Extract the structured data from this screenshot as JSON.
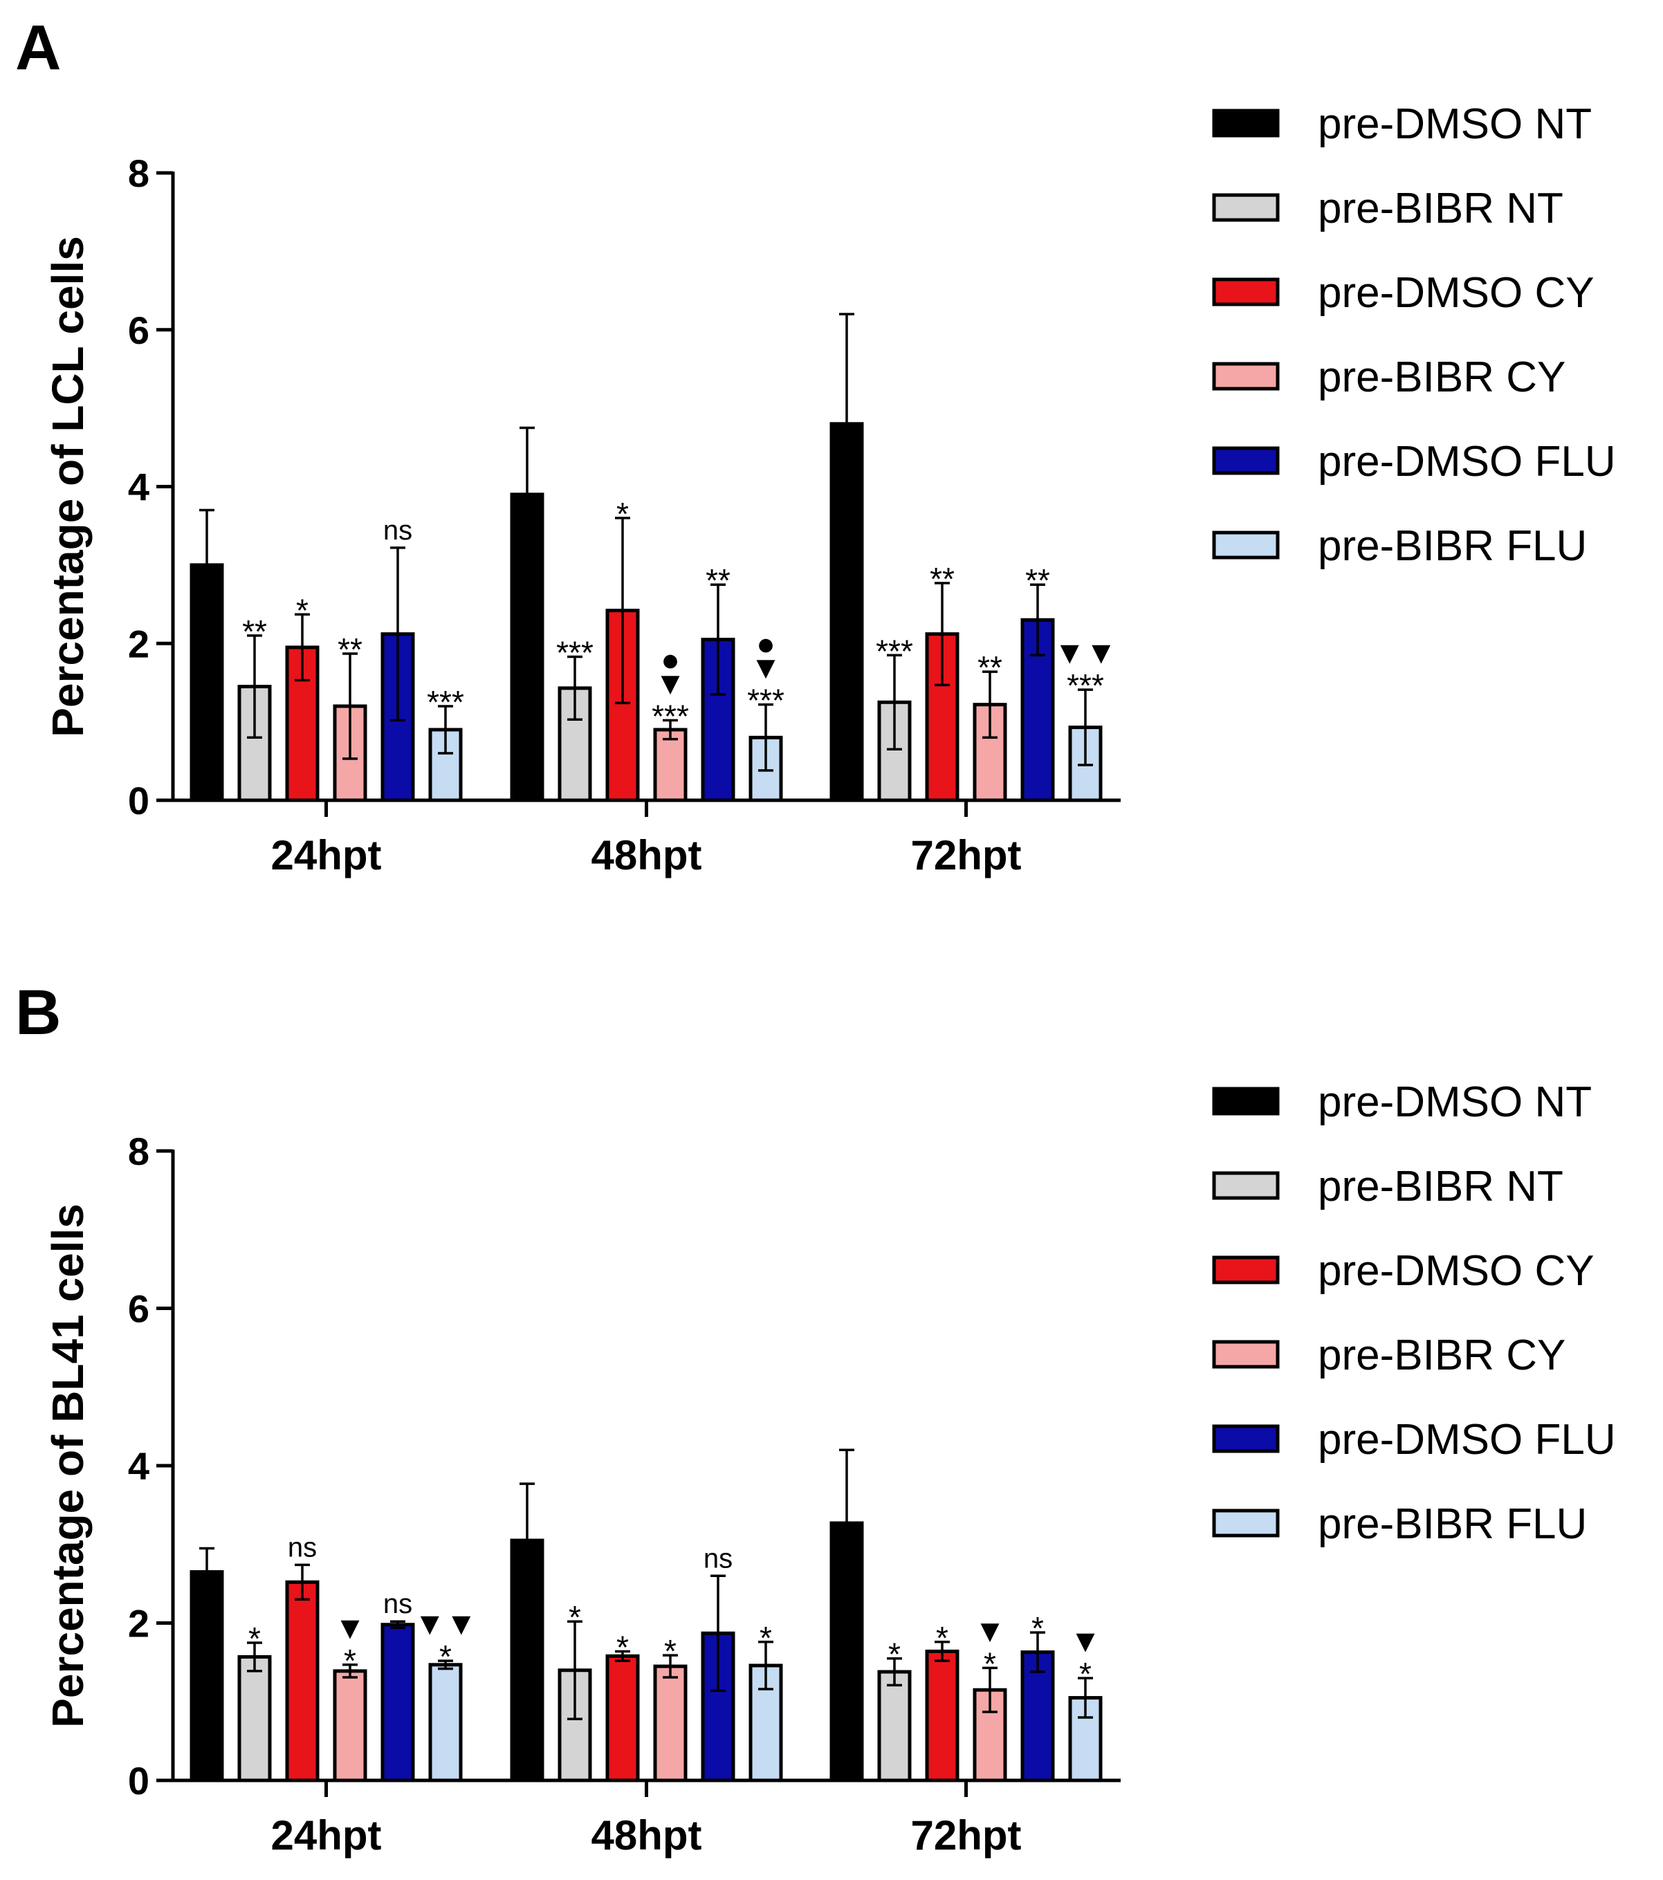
{
  "chart_data": [
    {
      "panel": "A",
      "type": "bar",
      "ylabel": "Percentage of LCL cells",
      "xlabel": "",
      "ylim": [
        0,
        8
      ],
      "yticks": [
        0,
        2,
        4,
        6,
        8
      ],
      "categories": [
        "24hpt",
        "48hpt",
        "72hpt"
      ],
      "series": [
        {
          "name": "pre-DMSO NT",
          "color": "#000000",
          "values": [
            3.0,
            3.9,
            4.8
          ],
          "errors": [
            0.7,
            0.85,
            1.4
          ],
          "annotations": [
            "",
            "",
            ""
          ]
        },
        {
          "name": "pre-BIBR NT",
          "color": "#d4d4d4",
          "values": [
            1.45,
            1.43,
            1.25
          ],
          "errors": [
            0.65,
            0.4,
            0.6
          ],
          "annotations": [
            "**",
            "***",
            "***"
          ]
        },
        {
          "name": "pre-DMSO CY",
          "color": "#e8141a",
          "values": [
            1.95,
            2.42,
            2.12
          ],
          "errors": [
            0.42,
            1.18,
            0.65
          ],
          "annotations": [
            "*",
            "*",
            "**"
          ]
        },
        {
          "name": "pre-BIBR CY",
          "color": "#f4a7a6",
          "values": [
            1.2,
            0.9,
            1.22
          ],
          "errors": [
            0.67,
            0.12,
            0.42
          ],
          "annotations": [
            "**",
            "●\n▼\n***",
            "**"
          ]
        },
        {
          "name": "pre-DMSO FLU",
          "color": "#0b0ba8",
          "values": [
            2.12,
            2.05,
            2.3
          ],
          "errors": [
            1.1,
            0.7,
            0.45
          ],
          "annotations": [
            "ns",
            "**",
            "**"
          ]
        },
        {
          "name": "pre-BIBR FLU",
          "color": "#c5dcf2",
          "values": [
            0.9,
            0.8,
            0.93
          ],
          "errors": [
            0.3,
            0.42,
            0.48
          ],
          "annotations": [
            "***",
            "●\n▼\n***",
            "▼▼\n***"
          ]
        }
      ]
    },
    {
      "panel": "B",
      "type": "bar",
      "ylabel": "Percentage of BL41 cells",
      "xlabel": "",
      "ylim": [
        0,
        8
      ],
      "yticks": [
        0,
        2,
        4,
        6,
        8
      ],
      "categories": [
        "24hpt",
        "48hpt",
        "72hpt"
      ],
      "series": [
        {
          "name": "pre-DMSO NT",
          "color": "#000000",
          "values": [
            2.65,
            3.05,
            3.27
          ],
          "errors": [
            0.3,
            0.72,
            0.93
          ],
          "annotations": [
            "",
            "",
            ""
          ]
        },
        {
          "name": "pre-BIBR NT",
          "color": "#d4d4d4",
          "values": [
            1.57,
            1.4,
            1.38
          ],
          "errors": [
            0.18,
            0.62,
            0.17
          ],
          "annotations": [
            "*",
            "*",
            "*"
          ]
        },
        {
          "name": "pre-DMSO CY",
          "color": "#e8141a",
          "values": [
            2.52,
            1.58,
            1.64
          ],
          "errors": [
            0.22,
            0.06,
            0.12
          ],
          "annotations": [
            "ns",
            "*",
            "*"
          ]
        },
        {
          "name": "pre-BIBR CY",
          "color": "#f4a7a6",
          "values": [
            1.39,
            1.45,
            1.15
          ],
          "errors": [
            0.08,
            0.14,
            0.28
          ],
          "annotations": [
            "▼\n*",
            "*",
            "▼\n*"
          ]
        },
        {
          "name": "pre-DMSO FLU",
          "color": "#0b0ba8",
          "values": [
            1.98,
            1.87,
            1.63
          ],
          "errors": [
            0.04,
            0.73,
            0.25
          ],
          "annotations": [
            "ns",
            "ns",
            "*"
          ]
        },
        {
          "name": "pre-BIBR FLU",
          "color": "#c5dcf2",
          "values": [
            1.47,
            1.46,
            1.05
          ],
          "errors": [
            0.05,
            0.3,
            0.25
          ],
          "annotations": [
            "▼▼\n*",
            "*",
            "▼\n*"
          ]
        }
      ]
    }
  ]
}
